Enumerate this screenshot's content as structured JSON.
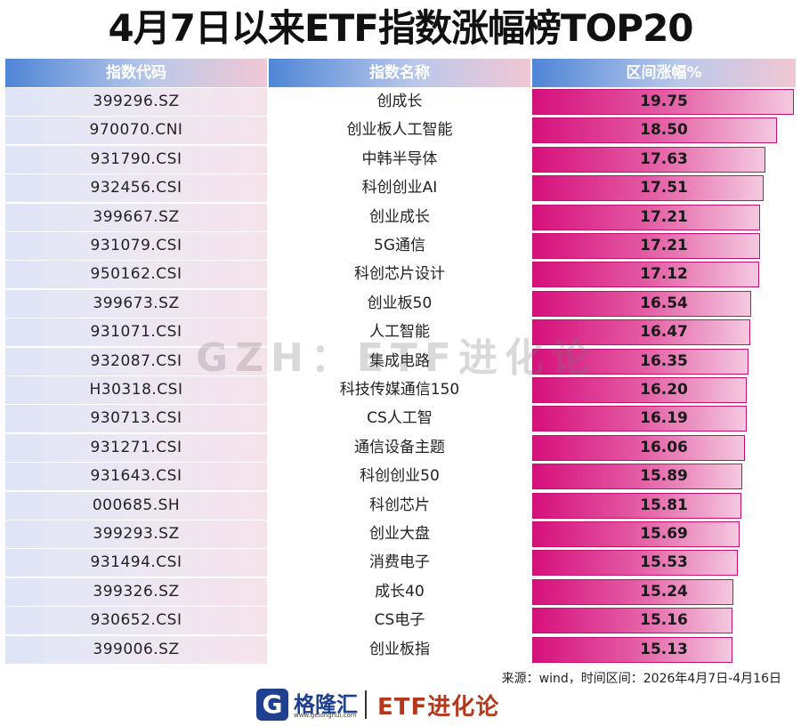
{
  "title": "4月7日以来ETF指数涨幅榜TOP20",
  "headers": {
    "code": "指数代码",
    "name": "指数名称",
    "change": "区间涨幅%"
  },
  "chart_data": {
    "type": "table",
    "title": "4月7日以来ETF指数涨幅榜TOP20",
    "columns": [
      "指数代码",
      "指数名称",
      "区间涨幅%"
    ],
    "rows": [
      {
        "code": "399296.SZ",
        "name": "创成长",
        "value": "19.75"
      },
      {
        "code": "970070.CNI",
        "name": "创业板人工智能",
        "value": "18.50"
      },
      {
        "code": "931790.CSI",
        "name": "中韩半导体",
        "value": "17.63"
      },
      {
        "code": "932456.CSI",
        "name": "科创创业AI",
        "value": "17.51"
      },
      {
        "code": "399667.SZ",
        "name": "创业成长",
        "value": "17.21"
      },
      {
        "code": "931079.CSI",
        "name": "5G通信",
        "value": "17.21"
      },
      {
        "code": "950162.CSI",
        "name": "科创芯片设计",
        "value": "17.12"
      },
      {
        "code": "399673.SZ",
        "name": "创业板50",
        "value": "16.54"
      },
      {
        "code": "931071.CSI",
        "name": "人工智能",
        "value": "16.47"
      },
      {
        "code": "932087.CSI",
        "name": "集成电路",
        "value": "16.35"
      },
      {
        "code": "H30318.CSI",
        "name": "科技传媒通信150",
        "value": "16.20"
      },
      {
        "code": "930713.CSI",
        "name": "CS人工智",
        "value": "16.19"
      },
      {
        "code": "931271.CSI",
        "name": "通信设备主题",
        "value": "16.06"
      },
      {
        "code": "931643.CSI",
        "name": "科创创业50",
        "value": "15.89"
      },
      {
        "code": "000685.SH",
        "name": "科创芯片",
        "value": "15.81"
      },
      {
        "code": "399293.SZ",
        "name": "创业大盘",
        "value": "15.69"
      },
      {
        "code": "931494.CSI",
        "name": "消费电子",
        "value": "15.53"
      },
      {
        "code": "399326.SZ",
        "name": "成长40",
        "value": "15.24"
      },
      {
        "code": "930652.CSI",
        "name": "CS电子",
        "value": "15.16"
      },
      {
        "code": "399006.SZ",
        "name": "创业板指",
        "value": "15.13"
      }
    ],
    "bar_color": "#d6107c"
  },
  "source": "来源：wind，时间区间：2026年4月7日-4月16日",
  "watermark": "GZH：ETF进化论",
  "footer": {
    "logo_mark": "G",
    "logo_name": "格隆汇",
    "logo_url": "www.gelonghui.com",
    "brand": "ETF进化论"
  }
}
